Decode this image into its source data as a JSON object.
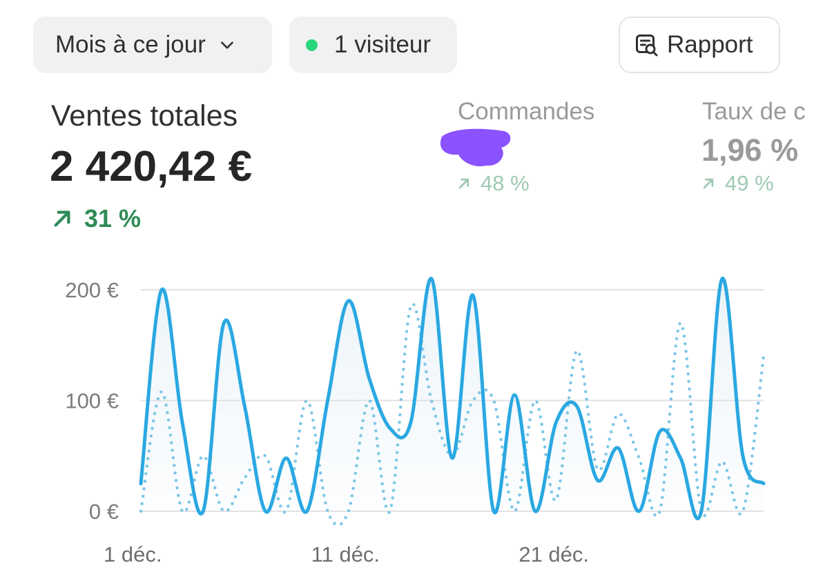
{
  "toolbar": {
    "period_label": "Mois à ce jour",
    "visitors_label": "1 visiteur",
    "report_label": "Rapport"
  },
  "metrics": {
    "total_sales": {
      "label": "Ventes totales",
      "value": "2 420,42 €",
      "delta": "31 %"
    },
    "orders": {
      "label": "Commandes",
      "delta": "48 %"
    },
    "conversion": {
      "label": "Taux de c",
      "value": "1,96 %",
      "delta": "49 %"
    }
  },
  "colors": {
    "primary_line": "#2aa8e2",
    "comparison_line": "#7cc6e8",
    "positive": "#2e8b57",
    "live_dot": "#29d57a",
    "redaction": "#8b52ff"
  },
  "chart_data": {
    "type": "line",
    "y_ticks": [
      "200 €",
      "100 €",
      "0 €"
    ],
    "ylim": [
      0,
      200
    ],
    "x_ticks": [
      "1 déc.",
      "11 déc.",
      "21 déc."
    ],
    "x_tick_days": [
      1,
      11,
      21
    ],
    "grid": true,
    "series": [
      {
        "style": "solid",
        "points": [
          [
            1,
            25
          ],
          [
            2,
            200
          ],
          [
            3,
            80
          ],
          [
            4,
            0
          ],
          [
            5,
            170
          ],
          [
            6,
            95
          ],
          [
            7,
            0
          ],
          [
            8,
            48
          ],
          [
            9,
            0
          ],
          [
            10,
            100
          ],
          [
            11,
            190
          ],
          [
            12,
            120
          ],
          [
            13,
            75
          ],
          [
            14,
            80
          ],
          [
            15,
            210
          ],
          [
            16,
            48
          ],
          [
            17,
            195
          ],
          [
            18,
            0
          ],
          [
            19,
            105
          ],
          [
            20,
            0
          ],
          [
            21,
            80
          ],
          [
            22,
            95
          ],
          [
            23,
            28
          ],
          [
            24,
            57
          ],
          [
            25,
            0
          ],
          [
            26,
            72
          ],
          [
            27,
            48
          ],
          [
            28,
            0
          ],
          [
            29,
            210
          ],
          [
            30,
            50
          ],
          [
            31,
            25
          ]
        ]
      },
      {
        "style": "dotted",
        "points": [
          [
            1,
            0
          ],
          [
            2,
            108
          ],
          [
            3,
            0
          ],
          [
            4,
            50
          ],
          [
            5,
            0
          ],
          [
            6,
            30
          ],
          [
            7,
            50
          ],
          [
            8,
            0
          ],
          [
            9,
            100
          ],
          [
            10,
            0
          ],
          [
            11,
            0
          ],
          [
            12,
            100
          ],
          [
            13,
            0
          ],
          [
            14,
            185
          ],
          [
            15,
            100
          ],
          [
            16,
            50
          ],
          [
            17,
            100
          ],
          [
            18,
            100
          ],
          [
            19,
            0
          ],
          [
            20,
            100
          ],
          [
            21,
            10
          ],
          [
            22,
            145
          ],
          [
            23,
            38
          ],
          [
            24,
            88
          ],
          [
            25,
            48
          ],
          [
            26,
            0
          ],
          [
            27,
            170
          ],
          [
            28,
            0
          ],
          [
            29,
            45
          ],
          [
            30,
            0
          ],
          [
            31,
            140
          ]
        ]
      }
    ]
  }
}
